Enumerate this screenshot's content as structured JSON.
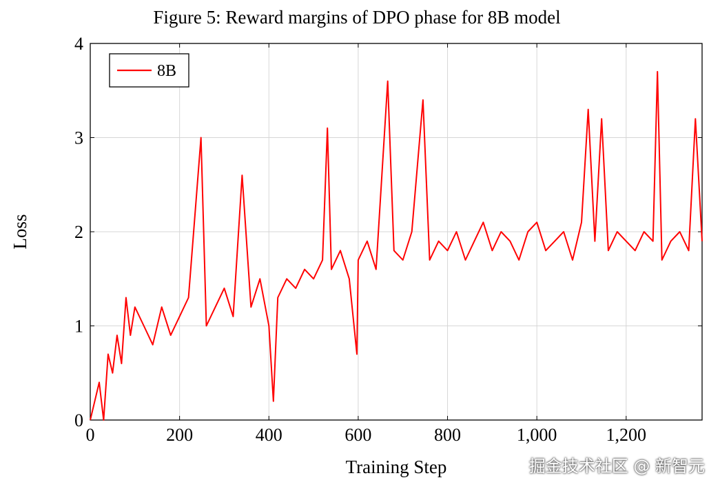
{
  "chart_data": {
    "type": "line",
    "title": "Figure 5: Reward margins of DPO phase for 8B model",
    "xlabel": "Training Step",
    "ylabel": "Loss",
    "xlim": [
      0,
      1370
    ],
    "ylim": [
      0,
      4
    ],
    "x_ticks": [
      0,
      200,
      400,
      600,
      800,
      1000,
      1200
    ],
    "x_tick_labels": [
      "0",
      "200",
      "400",
      "600",
      "800",
      "1,000",
      "1,200"
    ],
    "y_ticks": [
      0,
      1,
      2,
      3,
      4
    ],
    "y_tick_labels": [
      "0",
      "1",
      "2",
      "3",
      "4"
    ],
    "grid": true,
    "legend_position": "top-left",
    "series": [
      {
        "name": "8B",
        "color": "#ff0000",
        "x": [
          0,
          10,
          20,
          30,
          40,
          50,
          60,
          70,
          80,
          90,
          100,
          120,
          140,
          160,
          180,
          200,
          220,
          248,
          260,
          280,
          300,
          320,
          340,
          360,
          380,
          400,
          410,
          420,
          440,
          460,
          480,
          500,
          520,
          531,
          540,
          560,
          580,
          597,
          600,
          620,
          640,
          666,
          680,
          700,
          720,
          745,
          760,
          780,
          800,
          820,
          840,
          860,
          880,
          900,
          920,
          940,
          960,
          980,
          1000,
          1020,
          1040,
          1060,
          1080,
          1100,
          1115,
          1130,
          1145,
          1160,
          1180,
          1200,
          1220,
          1240,
          1260,
          1270,
          1280,
          1300,
          1320,
          1340,
          1355,
          1370
        ],
        "values": [
          0.0,
          0.2,
          0.4,
          0.0,
          0.7,
          0.5,
          0.9,
          0.6,
          1.3,
          0.9,
          1.2,
          1.0,
          0.8,
          1.2,
          0.9,
          1.1,
          1.3,
          3.0,
          1.0,
          1.2,
          1.4,
          1.1,
          2.6,
          1.2,
          1.5,
          1.0,
          0.2,
          1.3,
          1.5,
          1.4,
          1.6,
          1.5,
          1.7,
          3.1,
          1.6,
          1.8,
          1.5,
          0.7,
          1.7,
          1.9,
          1.6,
          3.6,
          1.8,
          1.7,
          2.0,
          3.4,
          1.7,
          1.9,
          1.8,
          2.0,
          1.7,
          1.9,
          2.1,
          1.8,
          2.0,
          1.9,
          1.7,
          2.0,
          2.1,
          1.8,
          1.9,
          2.0,
          1.7,
          2.1,
          3.3,
          1.9,
          3.2,
          1.8,
          2.0,
          1.9,
          1.8,
          2.0,
          1.9,
          3.7,
          1.7,
          1.9,
          2.0,
          1.8,
          3.2,
          1.9
        ]
      }
    ]
  },
  "watermark_text": "掘金技术社区 @ 新智元"
}
